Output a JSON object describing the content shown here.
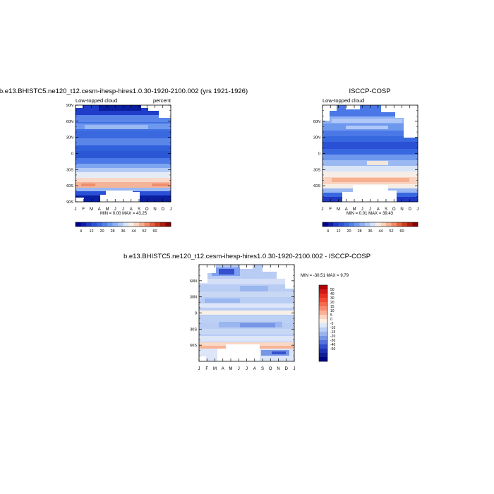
{
  "chart_data": [
    {
      "type": "heatmap",
      "title": "b.e13.BHISTC5.ne120_t12.cesm-ihesp-hires1.0.30-1920-2100.002 (yrs 1921-1926)",
      "left_string": "Low-topped cloud",
      "right_string": "percent",
      "stats": "MIN =   0.00 MAX =  43.25",
      "x": [
        "J",
        "F",
        "M",
        "A",
        "M",
        "J",
        "J",
        "A",
        "S",
        "O",
        "N",
        "D",
        "J"
      ],
      "y_ticks": [
        "90N",
        "60N",
        "30N",
        "0",
        "30S",
        "60S",
        "90S"
      ],
      "y_values": [
        90,
        60,
        30,
        0,
        -30,
        -60,
        -90
      ],
      "ylim": [
        -90,
        90
      ],
      "colorbar": {
        "orientation": "horizontal",
        "tick_labels": [
          "4",
          "12",
          "20",
          "28",
          "36",
          "44",
          "52",
          "60"
        ],
        "colors": [
          "#00008c",
          "#0f19a8",
          "#1e37c4",
          "#2a50d6",
          "#3868e0",
          "#5080e8",
          "#6e98ee",
          "#8eb0f4",
          "#b0c8f8",
          "#d8e4f8",
          "#f6eee6",
          "#fad2c0",
          "#f6b090",
          "#ef8a66",
          "#e2603c",
          "#cc3a1e",
          "#ac1c0a",
          "#880000"
        ]
      },
      "values_by_lat": [
        {
          "lat": 85,
          "value": 7
        },
        {
          "lat": 70,
          "value": 14
        },
        {
          "lat": 55,
          "value": 18
        },
        {
          "lat": 40,
          "value": 13
        },
        {
          "lat": 25,
          "value": 15
        },
        {
          "lat": 10,
          "value": 13
        },
        {
          "lat": -5,
          "value": 14
        },
        {
          "lat": -20,
          "value": 17
        },
        {
          "lat": -35,
          "value": 24
        },
        {
          "lat": -50,
          "value": 36
        },
        {
          "lat": -60,
          "value": 41
        },
        {
          "lat": -70,
          "value": 20
        },
        {
          "lat": -82,
          "value": 5
        }
      ]
    },
    {
      "type": "heatmap",
      "title": "ISCCP-COSP",
      "left_string": "Low-topped cloud",
      "right_string": "",
      "stats": "MIN =   0.01 MAX =  39.43",
      "x": [
        "J",
        "F",
        "M",
        "A",
        "M",
        "J",
        "J",
        "A",
        "S",
        "O",
        "N",
        "D",
        "J"
      ],
      "y_ticks": [
        "60N",
        "30N",
        "0",
        "30S",
        "60S"
      ],
      "y_values": [
        60,
        30,
        0,
        -30,
        -60
      ],
      "ylim": [
        -90,
        90
      ],
      "colorbar": {
        "orientation": "horizontal",
        "tick_labels": [
          "4",
          "12",
          "20",
          "28",
          "36",
          "44",
          "52",
          "60"
        ],
        "colors": [
          "#00008c",
          "#0f19a8",
          "#1e37c4",
          "#2a50d6",
          "#3868e0",
          "#5080e8",
          "#6e98ee",
          "#8eb0f4",
          "#b0c8f8",
          "#d8e4f8",
          "#f6eee6",
          "#fad2c0",
          "#f6b090",
          "#ef8a66",
          "#e2603c",
          "#cc3a1e",
          "#ac1c0a",
          "#880000"
        ]
      },
      "values_by_lat": [
        {
          "lat": 70,
          "value": 24
        },
        {
          "lat": 55,
          "value": 29
        },
        {
          "lat": 40,
          "value": 20
        },
        {
          "lat": 25,
          "value": 17
        },
        {
          "lat": 10,
          "value": 15
        },
        {
          "lat": -5,
          "value": 20
        },
        {
          "lat": -20,
          "value": 25
        },
        {
          "lat": -35,
          "value": 30
        },
        {
          "lat": -50,
          "value": 36
        },
        {
          "lat": -60,
          "value": 32
        },
        {
          "lat": -70,
          "value": 14
        }
      ]
    },
    {
      "type": "heatmap",
      "title": "b.e13.BHISTC5.ne120_t12.cesm-ihesp-hires1.0.30-1920-2100.002 - ISCCP-COSP",
      "stats": "MIN = -30.51 MAX =   9.79",
      "x": [
        "J",
        "F",
        "M",
        "A",
        "M",
        "J",
        "J",
        "A",
        "S",
        "O",
        "N",
        "D",
        "J"
      ],
      "y_ticks": [
        "60N",
        "30N",
        "0",
        "30S",
        "60S"
      ],
      "y_values": [
        60,
        30,
        0,
        -30,
        -60
      ],
      "ylim": [
        -90,
        90
      ],
      "colorbar": {
        "orientation": "vertical",
        "tick_labels": [
          "50",
          "40",
          "30",
          "20",
          "15",
          "10",
          "5",
          "0",
          "-5",
          "-10",
          "-15",
          "-20",
          "-30",
          "-40",
          "-50"
        ],
        "colors": [
          "#b0000a",
          "#d01818",
          "#e83020",
          "#f24a34",
          "#f66a50",
          "#f88c70",
          "#fab096",
          "#fcd4c0",
          "#fdf0e6",
          "#dde8f8",
          "#bcd0f4",
          "#9ab6ee",
          "#7896e6",
          "#5672dc",
          "#3450cc",
          "#2032b4",
          "#102090",
          "#000880"
        ]
      },
      "values_by_lat": [
        {
          "lat": 70,
          "value": -18
        },
        {
          "lat": 55,
          "value": -8
        },
        {
          "lat": 40,
          "value": -8
        },
        {
          "lat": 25,
          "value": -6
        },
        {
          "lat": 10,
          "value": -4
        },
        {
          "lat": -5,
          "value": -6
        },
        {
          "lat": -20,
          "value": -9
        },
        {
          "lat": -35,
          "value": -6
        },
        {
          "lat": -50,
          "value": -2
        },
        {
          "lat": -60,
          "value": 4
        },
        {
          "lat": -70,
          "value": -6
        }
      ]
    }
  ]
}
